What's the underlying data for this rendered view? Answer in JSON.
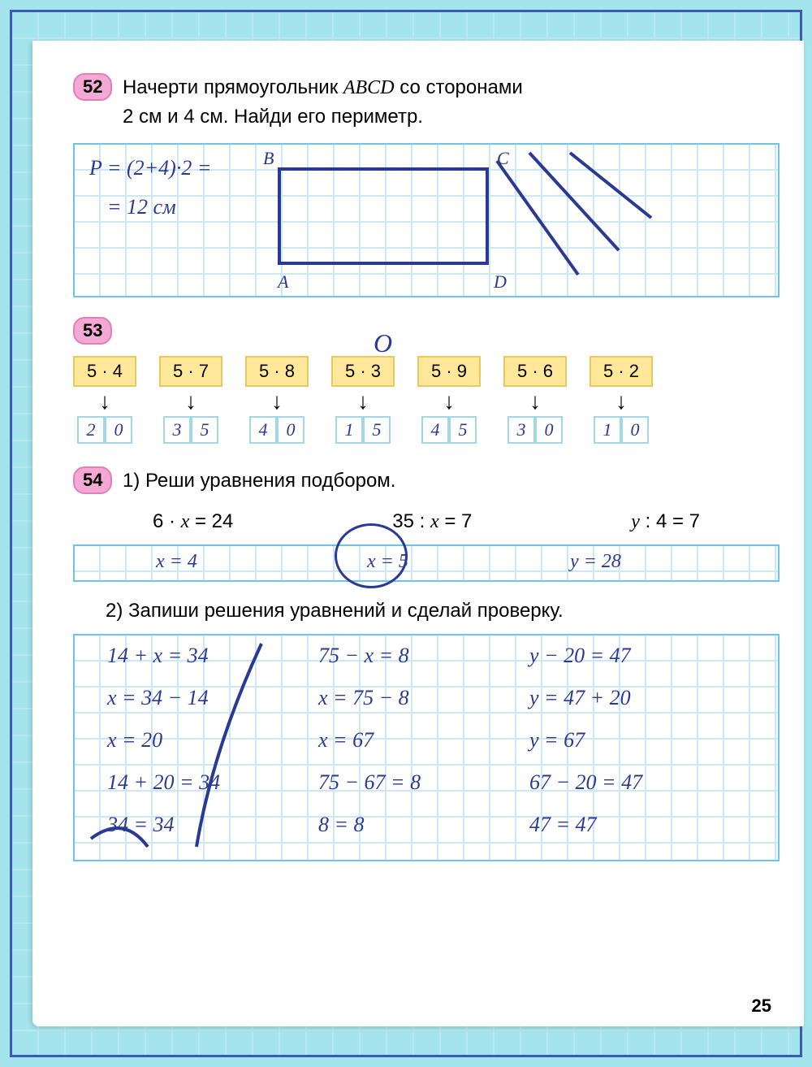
{
  "page_number": "25",
  "colors": {
    "page_bg": "#ffffff",
    "outer_bg": "#a4e4ec",
    "border": "#3b5bb8",
    "grid_line": "#cde8f4",
    "grid_border": "#6ec4e8",
    "badge_bg": "#f4a8d4",
    "badge_border": "#e080b8",
    "mult_bg": "#ffe89a",
    "mult_border": "#e8c860",
    "handwriting": "#2a3a94"
  },
  "problem52": {
    "number": "52",
    "text_line1": "Начерти прямоугольник ",
    "text_abcd": "ABCD",
    "text_line1b": " со сторонами",
    "text_line2": "2 см и 4 см. Найди его периметр.",
    "handwritten": {
      "eq1": "P = (2+4)·2 =",
      "eq2": "= 12 см",
      "label_A": "A",
      "label_B": "B",
      "label_C": "C",
      "label_D": "D"
    }
  },
  "problem53": {
    "number": "53",
    "items": [
      {
        "expr": "5 · 4",
        "ans": [
          "2",
          "0"
        ]
      },
      {
        "expr": "5 · 7",
        "ans": [
          "3",
          "5"
        ]
      },
      {
        "expr": "5 · 8",
        "ans": [
          "4",
          "0"
        ]
      },
      {
        "expr": "5 · 3",
        "ans": [
          "1",
          "5"
        ]
      },
      {
        "expr": "5 · 9",
        "ans": [
          "4",
          "5"
        ]
      },
      {
        "expr": "5 · 6",
        "ans": [
          "3",
          "0"
        ]
      },
      {
        "expr": "5 · 2",
        "ans": [
          "1",
          "0"
        ]
      }
    ]
  },
  "problem54": {
    "number": "54",
    "part1_label": "1) Реши уравнения подбором.",
    "part1_equations": [
      {
        "printed": "6 · x = 24",
        "answer": "x = 4"
      },
      {
        "printed": "35 : x = 7",
        "answer": "x = 5"
      },
      {
        "printed": "y : 4 = 7",
        "answer": "y = 28"
      }
    ],
    "part2_label": "2) Запиши решения уравнений и сделай проверку.",
    "part2_columns": [
      [
        "14 + x = 34",
        "x = 34 − 14",
        "x = 20",
        "14 + 20 = 34",
        "34 = 34"
      ],
      [
        "75 − x = 8",
        "x = 75 − 8",
        "x = 67",
        "75 − 67 = 8",
        "8 = 8"
      ],
      [
        "y − 20 = 47",
        "y = 47 + 20",
        "y = 67",
        "67 − 20 = 47",
        "47 = 47"
      ]
    ]
  }
}
